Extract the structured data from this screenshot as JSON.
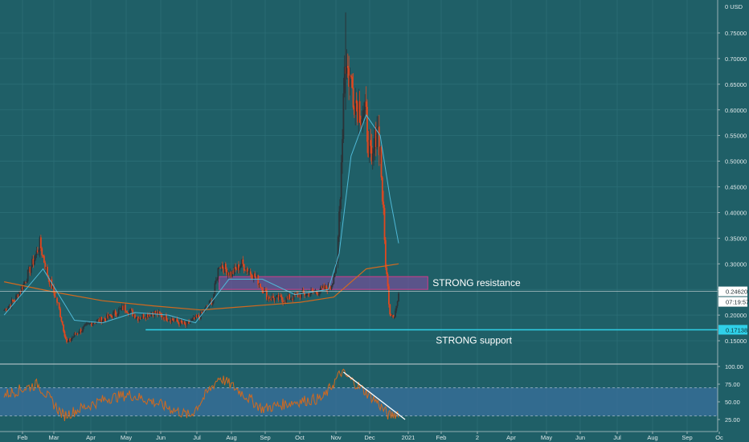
{
  "theme": {
    "background": "#1f5f67",
    "candle_up": "#2b3237",
    "candle_down": "#e0481f",
    "ema_fast": "#4fb8d6",
    "ema_slow": "#d2691e",
    "rsi_line": "#d2691e",
    "rsi_band_fill": "#3a6f9c",
    "support_line": "#2fd0e8",
    "resistance_zone_fill": "#8a4aa8",
    "resistance_zone_border": "#d13a8a",
    "trend_line": "#ffffff",
    "price_tag_bg": "#ffffff",
    "support_tag_bg": "#2fd0e8"
  },
  "chart_data": {
    "type": "candlestick",
    "price_axis": {
      "unit_label": "0 USD",
      "ticks": [
        "0.75000",
        "0.70000",
        "0.65000",
        "0.60000",
        "0.55000",
        "0.50000",
        "0.45000",
        "0.40000",
        "0.35000",
        "0.30000",
        "0.25000",
        "0.20000",
        "0.15000"
      ],
      "ylim": [
        0.115,
        0.79
      ]
    },
    "time_axis": {
      "ticks": [
        "Feb",
        "Mar",
        "Apr",
        "May",
        "Jun",
        "Jul",
        "Aug",
        "Sep",
        "Oct",
        "Nov",
        "Dec",
        "2021",
        "Feb",
        "2",
        "Apr",
        "May",
        "Jun",
        "Jul",
        "Aug",
        "Sep",
        "Oc"
      ]
    },
    "price_series_anchors": [
      {
        "date": "Jan 15",
        "price": 0.21
      },
      {
        "date": "Jan 25",
        "price": 0.23
      },
      {
        "date": "Feb 02",
        "price": 0.26
      },
      {
        "date": "Feb 12",
        "price": 0.31
      },
      {
        "date": "Feb 17",
        "price": 0.34
      },
      {
        "date": "Feb 24",
        "price": 0.28
      },
      {
        "date": "Mar 05",
        "price": 0.22
      },
      {
        "date": "Mar 13",
        "price": 0.145
      },
      {
        "date": "Mar 22",
        "price": 0.165
      },
      {
        "date": "Apr 05",
        "price": 0.185
      },
      {
        "date": "Apr 20",
        "price": 0.195
      },
      {
        "date": "May 05",
        "price": 0.215
      },
      {
        "date": "May 18",
        "price": 0.195
      },
      {
        "date": "Jun 01",
        "price": 0.205
      },
      {
        "date": "Jun 20",
        "price": 0.19
      },
      {
        "date": "Jul 01",
        "price": 0.18
      },
      {
        "date": "Jul 15",
        "price": 0.2
      },
      {
        "date": "Jul 26",
        "price": 0.23
      },
      {
        "date": "Aug 01",
        "price": 0.3
      },
      {
        "date": "Aug 12",
        "price": 0.28
      },
      {
        "date": "Aug 22",
        "price": 0.3
      },
      {
        "date": "Sep 05",
        "price": 0.27
      },
      {
        "date": "Sep 15",
        "price": 0.235
      },
      {
        "date": "Sep 30",
        "price": 0.23
      },
      {
        "date": "Oct 15",
        "price": 0.24
      },
      {
        "date": "Oct 30",
        "price": 0.245
      },
      {
        "date": "Nov 12",
        "price": 0.255
      },
      {
        "date": "Nov 18",
        "price": 0.3
      },
      {
        "date": "Nov 22",
        "price": 0.5
      },
      {
        "date": "Nov 25",
        "price": 0.7
      },
      {
        "date": "Dec 05",
        "price": 0.62
      },
      {
        "date": "Dec 15",
        "price": 0.58
      },
      {
        "date": "Dec 20",
        "price": 0.48
      },
      {
        "date": "Dec 25",
        "price": 0.58
      },
      {
        "date": "Dec 28",
        "price": 0.52
      },
      {
        "date": "Jan 02",
        "price": 0.3
      },
      {
        "date": "Jan 06",
        "price": 0.205
      },
      {
        "date": "Jan 10",
        "price": 0.2
      },
      {
        "date": "Jan 14",
        "price": 0.235
      }
    ],
    "price_extremes": {
      "high": 0.79,
      "low": 0.125
    },
    "ema_fast": [
      {
        "date": "Jan 15",
        "price": 0.2
      },
      {
        "date": "Feb 20",
        "price": 0.29
      },
      {
        "date": "Mar 20",
        "price": 0.19
      },
      {
        "date": "Apr 15",
        "price": 0.185
      },
      {
        "date": "May 15",
        "price": 0.205
      },
      {
        "date": "Jun 15",
        "price": 0.2
      },
      {
        "date": "Jul 10",
        "price": 0.185
      },
      {
        "date": "Aug 10",
        "price": 0.27
      },
      {
        "date": "Sep 10",
        "price": 0.27
      },
      {
        "date": "Oct 10",
        "price": 0.24
      },
      {
        "date": "Nov 10",
        "price": 0.25
      },
      {
        "date": "Nov 20",
        "price": 0.32
      },
      {
        "date": "Dec 01",
        "price": 0.51
      },
      {
        "date": "Dec 15",
        "price": 0.59
      },
      {
        "date": "Dec 28",
        "price": 0.55
      },
      {
        "date": "Jan 06",
        "price": 0.43
      },
      {
        "date": "Jan 14",
        "price": 0.34
      }
    ],
    "ema_slow": [
      {
        "date": "Jan 15",
        "price": 0.265
      },
      {
        "date": "Mar 01",
        "price": 0.245
      },
      {
        "date": "Apr 15",
        "price": 0.228
      },
      {
        "date": "Jun 01",
        "price": 0.218
      },
      {
        "date": "Jul 15",
        "price": 0.21
      },
      {
        "date": "Aug 15",
        "price": 0.215
      },
      {
        "date": "Sep 15",
        "price": 0.22
      },
      {
        "date": "Oct 15",
        "price": 0.225
      },
      {
        "date": "Nov 15",
        "price": 0.235
      },
      {
        "date": "Dec 15",
        "price": 0.29
      },
      {
        "date": "Jan 14",
        "price": 0.3
      }
    ],
    "resistance_zone": {
      "label": "STRONG resistance",
      "from": "Aug 01",
      "to": "Feb 10",
      "price_low": 0.25,
      "price_high": 0.275
    },
    "support_level": {
      "label": "STRONG support",
      "from": "May 25",
      "to": "Oct 15",
      "price": 0.17138
    },
    "current_price": {
      "value": "0.24620",
      "countdown": "07:19:57"
    },
    "support_tag": "0.17138",
    "rsi": {
      "ticks": [
        "100.00",
        "75.00",
        "50.00",
        "25.00"
      ],
      "ylim": [
        15,
        100
      ],
      "band": [
        30,
        70
      ],
      "anchors": [
        {
          "date": "Jan 15",
          "value": 60
        },
        {
          "date": "Feb 15",
          "value": 75
        },
        {
          "date": "Mar 10",
          "value": 30
        },
        {
          "date": "Mar 25",
          "value": 40
        },
        {
          "date": "Apr 20",
          "value": 55
        },
        {
          "date": "May 10",
          "value": 60
        },
        {
          "date": "Jun 01",
          "value": 50
        },
        {
          "date": "Jul 05",
          "value": 30
        },
        {
          "date": "Aug 01",
          "value": 85
        },
        {
          "date": "Aug 20",
          "value": 65
        },
        {
          "date": "Sep 10",
          "value": 40
        },
        {
          "date": "Oct 10",
          "value": 50
        },
        {
          "date": "Nov 05",
          "value": 55
        },
        {
          "date": "Nov 22",
          "value": 92
        },
        {
          "date": "Dec 10",
          "value": 70
        },
        {
          "date": "Dec 25",
          "value": 50
        },
        {
          "date": "Jan 05",
          "value": 30
        },
        {
          "date": "Jan 14",
          "value": 35
        }
      ],
      "trendline": [
        {
          "date": "Nov 24",
          "value": 92
        },
        {
          "date": "Jan 20",
          "value": 25
        }
      ]
    }
  }
}
